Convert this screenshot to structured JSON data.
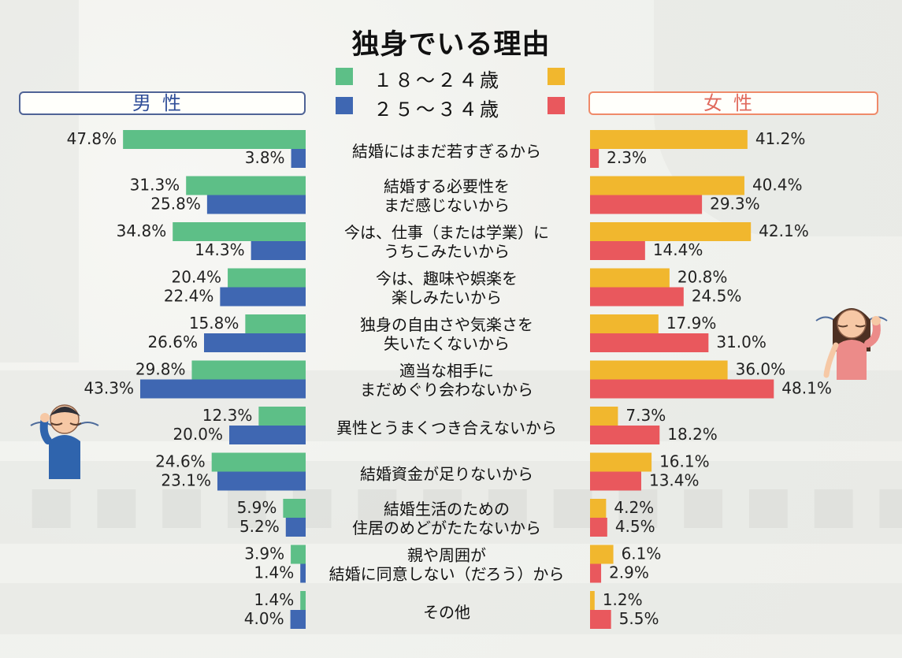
{
  "title": "独身でいる理由",
  "legend": {
    "age_18_24": "１８～２４歳",
    "age_25_34": "２５～３４歳"
  },
  "genders": {
    "male": "男性",
    "female": "女性"
  },
  "colors": {
    "male_18_24": "#5dbf87",
    "male_25_34": "#3f67b2",
    "female_18_24": "#f1b72e",
    "female_25_34": "#e9585d",
    "male_box_border": "#4f6396",
    "female_box_border": "#ef8a69",
    "male_box_text": "#314f99",
    "female_box_text": "#e06a5d"
  },
  "chart_data": {
    "type": "bar",
    "title": "独身でいる理由",
    "categories": [
      [
        "結婚にはまだ若すぎるから"
      ],
      [
        "結婚する必要性を",
        "まだ感じないから"
      ],
      [
        "今は、仕事（または学業）に",
        "うちこみたいから"
      ],
      [
        "今は、趣味や娯楽を",
        "楽しみたいから"
      ],
      [
        "独身の自由さや気楽さを",
        "失いたくないから"
      ],
      [
        "適当な相手に",
        "まだめぐり会わないから"
      ],
      [
        "異性とうまくつき合えないから"
      ],
      [
        "結婚資金が足りないから"
      ],
      [
        "結婚生活のための",
        "住居のめどがたたないから"
      ],
      [
        "親や周囲が",
        "結婚に同意しない（だろう）から"
      ],
      [
        "その他"
      ]
    ],
    "series": [
      {
        "name": "男性 １８～２４歳",
        "values": [
          47.8,
          31.3,
          34.8,
          20.4,
          15.8,
          29.8,
          12.3,
          24.6,
          5.9,
          3.9,
          1.4
        ],
        "labels": [
          "47.8%",
          "31.3%",
          "34.8%",
          "20.4%",
          "15.8%",
          "29.8%",
          "12.3%",
          "24.6%",
          "5.9%",
          "3.9%",
          "1.4%"
        ]
      },
      {
        "name": "男性 ２５～３４歳",
        "values": [
          3.8,
          25.8,
          14.3,
          22.4,
          26.6,
          43.3,
          20.0,
          23.1,
          5.2,
          1.4,
          4.0
        ],
        "labels": [
          "3.8%",
          "25.8%",
          "14.3%",
          "22.4%",
          "26.6%",
          "43.3%",
          "20.0%",
          "23.1%",
          "5.2%",
          "1.4%",
          "4.0%"
        ]
      },
      {
        "name": "女性 １８～２４歳",
        "values": [
          41.2,
          40.4,
          42.1,
          20.8,
          17.9,
          36.0,
          7.3,
          16.1,
          4.2,
          6.1,
          1.2
        ],
        "labels": [
          "41.2%",
          "40.4%",
          "42.1%",
          "20.8%",
          "17.9%",
          "36.0%",
          "7.3%",
          "16.1%",
          "4.2%",
          "6.1%",
          "1.2%"
        ]
      },
      {
        "name": "女性 ２５～３４歳",
        "values": [
          2.3,
          29.3,
          14.4,
          24.5,
          31.0,
          48.1,
          18.2,
          13.4,
          4.5,
          2.9,
          5.5
        ],
        "labels": [
          "2.3%",
          "29.3%",
          "14.4%",
          "24.5%",
          "31.0%",
          "48.1%",
          "18.2%",
          "13.4%",
          "4.5%",
          "2.9%",
          "5.5%"
        ]
      }
    ]
  }
}
